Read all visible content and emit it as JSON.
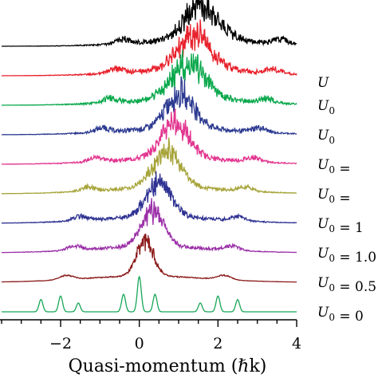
{
  "chart_data": {
    "type": "line",
    "xlabel": "Quasi-momentum (ℏk)",
    "ylabel": "",
    "xlim": [
      -3.5,
      4
    ],
    "xticks": [
      {
        "value": -2,
        "label": "−2"
      },
      {
        "value": 0,
        "label": "0"
      },
      {
        "value": 2,
        "label": "2"
      },
      {
        "value": 4,
        "label": "4"
      }
    ],
    "series": [
      {
        "name": "",
        "color": "#000000",
        "center": 1.6,
        "peak_width": 0.6,
        "noise": 0.45,
        "label": "",
        "label_parts": []
      },
      {
        "name": "",
        "color": "#e8212c",
        "center": 1.4,
        "peak_width": 0.6,
        "noise": 0.45,
        "label": "U",
        "label_parts": [
          {
            "t": "U",
            "style": "italic",
            "sub": ""
          }
        ]
      },
      {
        "name": "",
        "color": "#0aa84c",
        "center": 1.25,
        "peak_width": 0.6,
        "noise": 0.45,
        "label": "U0",
        "label_parts": [
          {
            "t": "U",
            "style": "italic",
            "sub": "0"
          }
        ]
      },
      {
        "name": "",
        "color": "#2b3990",
        "center": 1.05,
        "peak_width": 0.5,
        "noise": 0.4,
        "label": "U0",
        "label_parts": [
          {
            "t": "U",
            "style": "italic",
            "sub": "0"
          }
        ]
      },
      {
        "name": "",
        "color": "#e2358f",
        "center": 0.9,
        "peak_width": 0.5,
        "noise": 0.35,
        "label": "U0 =",
        "label_parts": [
          {
            "t": "U",
            "style": "italic",
            "sub": "0"
          },
          {
            "t": " =",
            "style": "normal",
            "sub": ""
          }
        ]
      },
      {
        "name": "",
        "color": "#a7a43a",
        "center": 0.7,
        "peak_width": 0.5,
        "noise": 0.3,
        "label": "U0 =",
        "label_parts": [
          {
            "t": "U",
            "style": "italic",
            "sub": "0"
          },
          {
            "t": " =",
            "style": "normal",
            "sub": ""
          }
        ]
      },
      {
        "name": "",
        "color": "#2e3192",
        "center": 0.5,
        "peak_width": 0.45,
        "noise": 0.3,
        "label": "U0 = 1",
        "label_parts": [
          {
            "t": "U",
            "style": "italic",
            "sub": "0"
          },
          {
            "t": " = 1",
            "style": "normal",
            "sub": ""
          }
        ]
      },
      {
        "name": "",
        "color": "#9b30a8",
        "center": 0.35,
        "peak_width": 0.4,
        "noise": 0.25,
        "label": "U0 = 1.0",
        "label_parts": [
          {
            "t": "U",
            "style": "italic",
            "sub": "0"
          },
          {
            "t": " = 1.0",
            "style": "normal",
            "sub": ""
          }
        ]
      },
      {
        "name": "",
        "color": "#8b1a1a",
        "center": 0.15,
        "peak_width": 0.3,
        "noise": 0.08,
        "label": "U0 = 0.5",
        "label_parts": [
          {
            "t": "U",
            "style": "italic",
            "sub": "0"
          },
          {
            "t": " = 0.5",
            "style": "normal",
            "sub": ""
          }
        ]
      },
      {
        "name": "",
        "color": "#17a657",
        "center": 0.0,
        "peak_width": 0.1,
        "noise": 0.0,
        "label": "U0 = 0",
        "label_parts": [
          {
            "t": "U",
            "style": "italic",
            "sub": "0"
          },
          {
            "t": " = 0",
            "style": "normal",
            "sub": ""
          }
        ]
      }
    ],
    "grid": false,
    "legend": "none"
  }
}
